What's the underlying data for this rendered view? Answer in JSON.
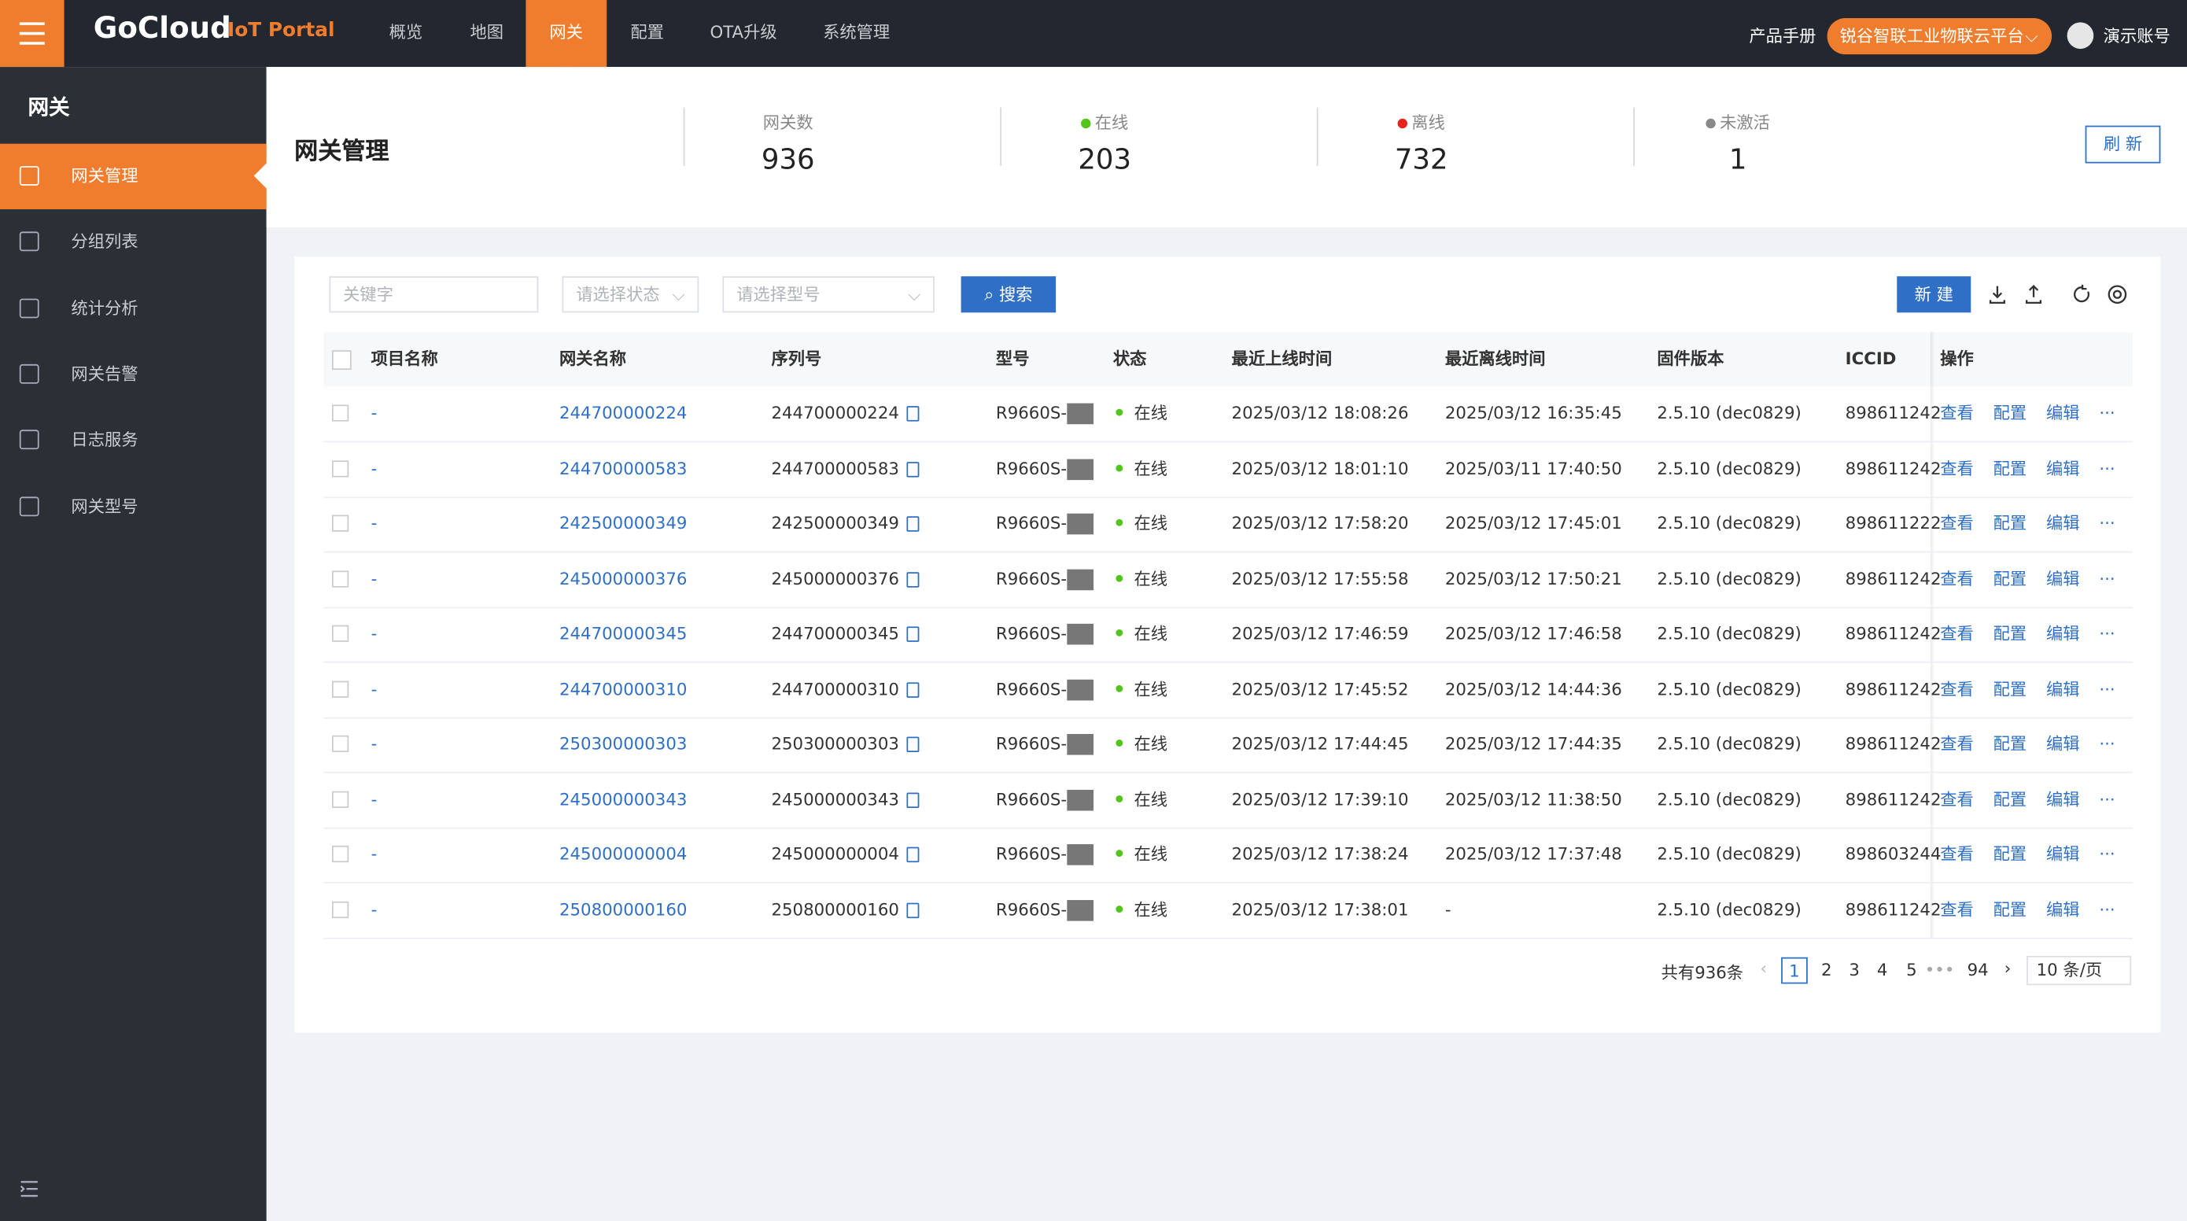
{
  "topbar": {
    "brand": "GoCloud",
    "brand_sub": "IoT Portal",
    "menu": [
      "概览",
      "地图",
      "网关",
      "配置",
      "OTA升级",
      "系统管理"
    ],
    "manual": "产品手册",
    "platform": "锐谷智联工业物联云平台",
    "account": "演示账号"
  },
  "sidebar": {
    "title": "网关",
    "items": [
      "网关管理",
      "分组列表",
      "统计分析",
      "网关告警",
      "日志服务",
      "网关型号"
    ]
  },
  "header": {
    "title": "网关管理",
    "stats": [
      {
        "label": "网关数",
        "value": 936
      },
      {
        "label": "在线",
        "value": 203
      },
      {
        "label": "离线",
        "value": 732
      },
      {
        "label": "未激活",
        "value": 1
      }
    ],
    "refresh": "刷 新"
  },
  "toolbar": {
    "keyword": "关键字",
    "status": "请选择状态",
    "model": "请选择型号",
    "search": "搜索",
    "new": "新 建"
  },
  "table": {
    "columns": [
      "项目名称",
      "网关名称",
      "序列号",
      "型号",
      "状态",
      "最近上线时间",
      "最近离线时间",
      "固件版本",
      "ICCID",
      "操作"
    ],
    "actions": [
      "查看",
      "配置",
      "编辑",
      "···"
    ],
    "rows": [
      [
        "-",
        "244700000224",
        "244700000224",
        "R9660S-",
        "在线",
        "2025/03/12 18:08:26",
        "2025/03/12 16:35:45",
        "2.5.10 (dec0829)",
        "898611242"
      ],
      [
        "-",
        "244700000583",
        "244700000583",
        "R9660S-",
        "在线",
        "2025/03/12 18:01:10",
        "2025/03/11 17:40:50",
        "2.5.10 (dec0829)",
        "898611242"
      ],
      [
        "-",
        "242500000349",
        "242500000349",
        "R9660S-",
        "在线",
        "2025/03/12 17:58:20",
        "2025/03/12 17:45:01",
        "2.5.10 (dec0829)",
        "898611222"
      ],
      [
        "-",
        "245000000376",
        "245000000376",
        "R9660S-",
        "在线",
        "2025/03/12 17:55:58",
        "2025/03/12 17:50:21",
        "2.5.10 (dec0829)",
        "898611242"
      ],
      [
        "-",
        "244700000345",
        "244700000345",
        "R9660S-",
        "在线",
        "2025/03/12 17:46:59",
        "2025/03/12 17:46:58",
        "2.5.10 (dec0829)",
        "898611242"
      ],
      [
        "-",
        "244700000310",
        "244700000310",
        "R9660S-",
        "在线",
        "2025/03/12 17:45:52",
        "2025/03/12 14:44:36",
        "2.5.10 (dec0829)",
        "898611242"
      ],
      [
        "-",
        "250300000303",
        "250300000303",
        "R9660S-",
        "在线",
        "2025/03/12 17:44:45",
        "2025/03/12 17:44:35",
        "2.5.10 (dec0829)",
        "898611242"
      ],
      [
        "-",
        "245000000343",
        "245000000343",
        "R9660S-",
        "在线",
        "2025/03/12 17:39:10",
        "2025/03/12 11:38:50",
        "2.5.10 (dec0829)",
        "898611242"
      ],
      [
        "-",
        "245000000004",
        "245000000004",
        "R9660S-",
        "在线",
        "2025/03/12 17:38:24",
        "2025/03/12 17:37:48",
        "2.5.10 (dec0829)",
        "898603244"
      ],
      [
        "-",
        "250800000160",
        "250800000160",
        "R9660S-",
        "在线",
        "2025/03/12 17:38:01",
        "-",
        "2.5.10 (dec0829)",
        "898611242"
      ]
    ]
  },
  "pagination": {
    "total": "共有936条",
    "pages": [
      "1",
      "2",
      "3",
      "4",
      "5",
      "•••",
      "94"
    ],
    "page_size": "10 条/页"
  }
}
